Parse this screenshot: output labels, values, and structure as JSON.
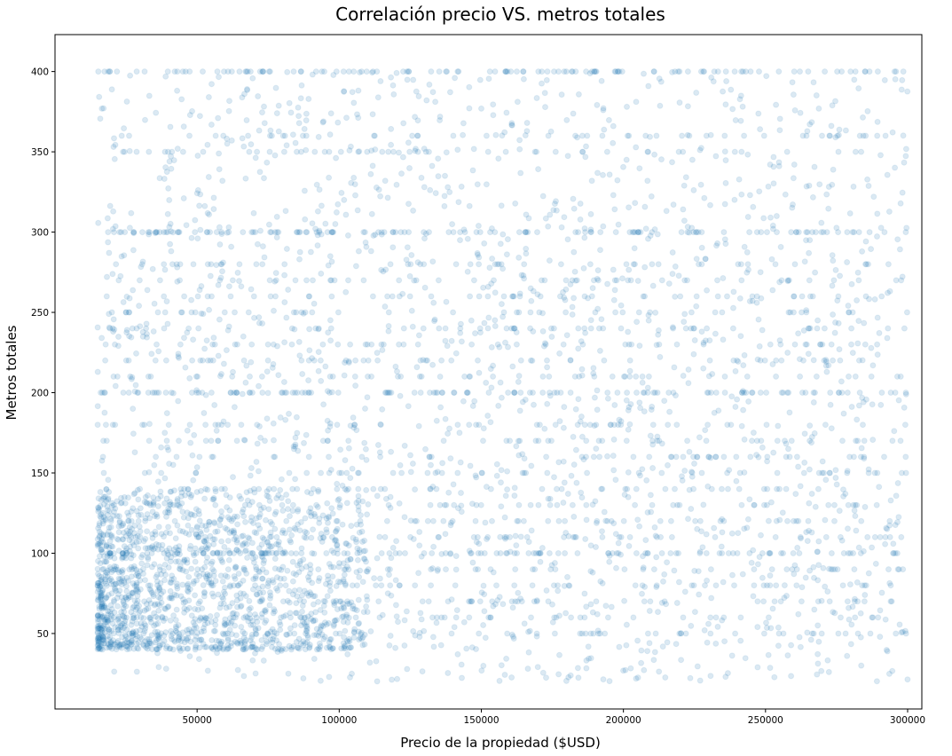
{
  "chart_data": {
    "type": "scatter",
    "title": "Correlación precio VS. metros totales",
    "xlabel": "Precio de la propiedad ($USD)",
    "ylabel": "Metros totales",
    "xlim": [
      0,
      305000
    ],
    "ylim": [
      3,
      423
    ],
    "x_ticks": [
      50000,
      100000,
      150000,
      200000,
      250000,
      300000
    ],
    "y_ticks": [
      50,
      100,
      150,
      200,
      250,
      300,
      350,
      400
    ],
    "grid": false,
    "legend": "none",
    "marker_color": "#1f77b4",
    "marker_alpha": 0.1,
    "x_range_of_points": [
      15000,
      300000
    ],
    "y_range_of_points": [
      20,
      400
    ],
    "dense_region": {
      "x": [
        15000,
        110000
      ],
      "y": [
        40,
        140
      ]
    },
    "horizontal_bands_y": [
      400,
      360,
      350,
      300,
      280,
      270,
      260,
      250,
      240,
      230,
      220,
      210,
      200,
      180,
      170,
      160,
      150,
      140,
      130,
      120,
      110,
      100,
      90,
      80,
      70,
      60,
      50
    ]
  }
}
